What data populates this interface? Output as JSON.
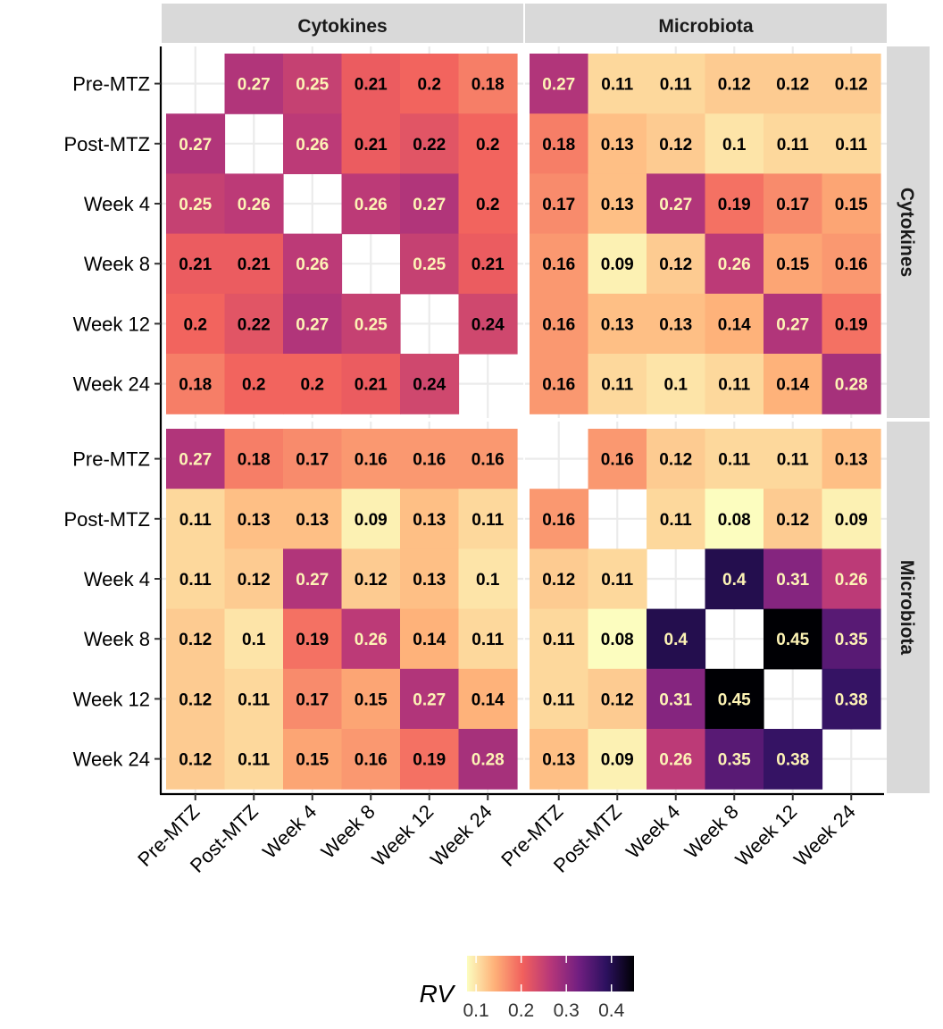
{
  "chart_data": {
    "type": "heatmap",
    "categories": [
      "Pre-MTZ",
      "Post-MTZ",
      "Week 4",
      "Week 8",
      "Week 12",
      "Week 24"
    ],
    "column_facets": [
      "Cytokines",
      "Microbiota"
    ],
    "row_facets": [
      "Cytokines",
      "Microbiota"
    ],
    "panels": [
      {
        "row_facet": "Cytokines",
        "col_facet": "Cytokines",
        "values": [
          [
            null,
            0.27,
            0.25,
            0.21,
            0.2,
            0.18
          ],
          [
            0.27,
            null,
            0.26,
            0.21,
            0.22,
            0.2
          ],
          [
            0.25,
            0.26,
            null,
            0.26,
            0.27,
            0.2
          ],
          [
            0.21,
            0.21,
            0.26,
            null,
            0.25,
            0.21
          ],
          [
            0.2,
            0.22,
            0.27,
            0.25,
            null,
            0.24
          ],
          [
            0.18,
            0.2,
            0.2,
            0.21,
            0.24,
            null
          ]
        ]
      },
      {
        "row_facet": "Cytokines",
        "col_facet": "Microbiota",
        "values": [
          [
            0.27,
            0.11,
            0.11,
            0.12,
            0.12,
            0.12
          ],
          [
            0.18,
            0.13,
            0.12,
            0.1,
            0.11,
            0.11
          ],
          [
            0.17,
            0.13,
            0.27,
            0.19,
            0.17,
            0.15
          ],
          [
            0.16,
            0.09,
            0.12,
            0.26,
            0.15,
            0.16
          ],
          [
            0.16,
            0.13,
            0.13,
            0.14,
            0.27,
            0.19
          ],
          [
            0.16,
            0.11,
            0.1,
            0.11,
            0.14,
            0.28
          ]
        ]
      },
      {
        "row_facet": "Microbiota",
        "col_facet": "Cytokines",
        "values": [
          [
            0.27,
            0.18,
            0.17,
            0.16,
            0.16,
            0.16
          ],
          [
            0.11,
            0.13,
            0.13,
            0.09,
            0.13,
            0.11
          ],
          [
            0.11,
            0.12,
            0.27,
            0.12,
            0.13,
            0.1
          ],
          [
            0.12,
            0.1,
            0.19,
            0.26,
            0.14,
            0.11
          ],
          [
            0.12,
            0.11,
            0.17,
            0.15,
            0.27,
            0.14
          ],
          [
            0.12,
            0.11,
            0.15,
            0.16,
            0.19,
            0.28
          ]
        ]
      },
      {
        "row_facet": "Microbiota",
        "col_facet": "Microbiota",
        "values": [
          [
            null,
            0.16,
            0.12,
            0.11,
            0.11,
            0.13
          ],
          [
            0.16,
            null,
            0.11,
            0.08,
            0.12,
            0.09
          ],
          [
            0.12,
            0.11,
            null,
            0.4,
            0.31,
            0.26
          ],
          [
            0.11,
            0.08,
            0.4,
            null,
            0.45,
            0.35
          ],
          [
            0.11,
            0.12,
            0.31,
            0.45,
            null,
            0.38
          ],
          [
            0.13,
            0.09,
            0.26,
            0.35,
            0.38,
            null
          ]
        ]
      }
    ],
    "color_scale": {
      "name": "magma-reversed",
      "limits": [
        0.08,
        0.45
      ],
      "stops": [
        "#fcfdbf",
        "#feb078",
        "#f1605d",
        "#b73779",
        "#721f81",
        "#2c115f",
        "#000004"
      ]
    },
    "legend": {
      "title": "RV",
      "ticks": [
        0.1,
        0.2,
        0.3,
        0.4
      ],
      "tick_labels": [
        "0.1",
        "0.2",
        "0.3",
        "0.4"
      ],
      "position": "bottom"
    },
    "grid": true
  }
}
